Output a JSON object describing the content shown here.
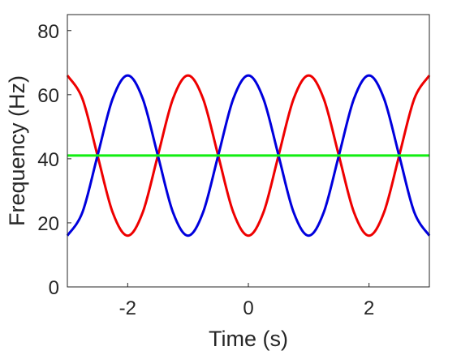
{
  "chart_data": {
    "type": "line",
    "xlabel": "Time (s)",
    "ylabel": "Frequency (Hz)",
    "xlim": [
      -3,
      3
    ],
    "ylim": [
      0,
      85
    ],
    "xticks": [
      -2,
      0,
      2
    ],
    "yticks": [
      0,
      20,
      40,
      60,
      80
    ],
    "grid": false,
    "legend": "none",
    "series": [
      {
        "color": "#ee0000",
        "x": [
          -3,
          -2.75,
          -2.5,
          -2.25,
          -2,
          -1.75,
          -1.5,
          -1.25,
          -1,
          -0.75,
          -0.5,
          -0.25,
          0,
          0.25,
          0.5,
          0.75,
          1,
          1.25,
          1.5,
          1.75,
          2,
          2.25,
          2.5,
          2.75,
          3
        ],
        "y": [
          66,
          58.7,
          41,
          23.3,
          16,
          23.3,
          41,
          58.7,
          66,
          58.7,
          41,
          23.3,
          16,
          23.3,
          41,
          58.7,
          66,
          58.7,
          41,
          23.3,
          16,
          23.3,
          41,
          58.7,
          66
        ]
      },
      {
        "color": "#0000dd",
        "x": [
          -3,
          -2.75,
          -2.5,
          -2.25,
          -2,
          -1.75,
          -1.5,
          -1.25,
          -1,
          -0.75,
          -0.5,
          -0.25,
          0,
          0.25,
          0.5,
          0.75,
          1,
          1.25,
          1.5,
          1.75,
          2,
          2.25,
          2.5,
          2.75,
          3
        ],
        "y": [
          16,
          23.3,
          41,
          58.7,
          66,
          58.7,
          41,
          23.3,
          16,
          23.3,
          41,
          58.7,
          66,
          58.7,
          41,
          23.3,
          16,
          23.3,
          41,
          58.7,
          66,
          58.7,
          41,
          23.3,
          16
        ]
      },
      {
        "color": "#11ee11",
        "x": [
          -3,
          3
        ],
        "y": [
          41,
          41
        ]
      }
    ]
  }
}
